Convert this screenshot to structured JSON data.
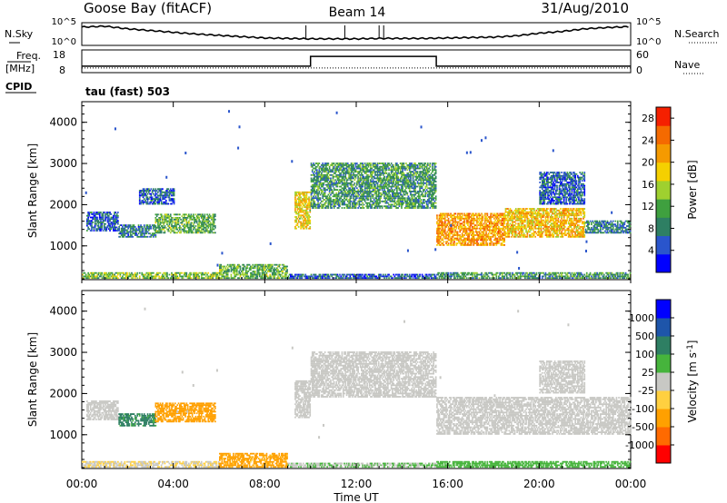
{
  "header": {
    "station": "Goose Bay (fitACF)",
    "beam": "Beam 14",
    "date": "31/Aug/2010",
    "cpid_label": "CPID",
    "cpid_value": "tau (fast) 503"
  },
  "colors": {
    "power": [
      "#0000ff",
      "#2a55cc",
      "#2e7f63",
      "#3fa03f",
      "#9fd02f",
      "#f5d000",
      "#f59a00",
      "#f56a00",
      "#f52000"
    ],
    "velocity": [
      "#ff0000",
      "#ff6a00",
      "#ffa000",
      "#ffd040",
      "#c8c8c4",
      "#46b43c",
      "#2e7f63",
      "#1e55aa",
      "#0000ff"
    ],
    "velocity_gray": "#c8c8c4"
  },
  "chart_data": [
    {
      "type": "line",
      "title": "N.Sky / N.Search",
      "left_label": "N.Sky",
      "right_label": "N.Search",
      "y_ticks_left": [
        "10^5",
        "10^0"
      ],
      "y_ticks_right": [
        "10^5",
        "10^0"
      ],
      "x": [
        0,
        1,
        2,
        3,
        4,
        5,
        6,
        7,
        8,
        9,
        10,
        11,
        12,
        13,
        14,
        15,
        16,
        17,
        18,
        19,
        20,
        21,
        22,
        23,
        24
      ],
      "series": [
        {
          "values_log10": [
            4.2,
            4.4,
            3.8,
            3.4,
            3.0,
            2.6,
            2.3,
            2.0,
            1.7,
            1.6,
            1.5,
            1.5,
            1.5,
            1.6,
            1.6,
            1.6,
            1.7,
            1.8,
            1.9,
            2.2,
            2.8,
            3.2,
            3.8,
            4.1,
            4.3
          ]
        }
      ]
    },
    {
      "type": "line",
      "title": "Freq / Nave",
      "left_label": "Freq. [MHz]",
      "right_label": "Nave",
      "y_ticks_left": [
        "18",
        "8"
      ],
      "y_ticks_right": [
        "60",
        "0"
      ],
      "series": [
        {
          "x": [
            0,
            10,
            10,
            15.5,
            15.5,
            24
          ],
          "values": [
            10,
            10,
            16,
            16,
            10,
            10
          ]
        }
      ]
    },
    {
      "type": "heatmap",
      "ylabel": "Slant Range [km]",
      "xlim": [
        0,
        24
      ],
      "ylim": [
        180,
        4500
      ],
      "y_ticks": [
        1000,
        2000,
        3000,
        4000
      ],
      "colorbar": {
        "label": "Power [dB]",
        "ticks": [
          "4",
          "8",
          "12",
          "16",
          "20",
          "24",
          "28"
        ],
        "range": [
          0,
          30
        ]
      },
      "regions": [
        {
          "t": [
            0.0,
            6.0
          ],
          "r": [
            200,
            330
          ],
          "value": 14
        },
        {
          "t": [
            6.0,
            9.0
          ],
          "r": [
            200,
            550
          ],
          "value": 12
        },
        {
          "t": [
            9.0,
            15.5
          ],
          "r": [
            200,
            300
          ],
          "value": 6
        },
        {
          "t": [
            15.5,
            24.0
          ],
          "r": [
            200,
            330
          ],
          "value": 10
        },
        {
          "t": [
            0.2,
            1.6
          ],
          "r": [
            1350,
            1800
          ],
          "value": 6
        },
        {
          "t": [
            1.6,
            3.2
          ],
          "r": [
            1200,
            1500
          ],
          "value": 8
        },
        {
          "t": [
            3.2,
            5.8
          ],
          "r": [
            1300,
            1750
          ],
          "value": 12
        },
        {
          "t": [
            2.5,
            4.0
          ],
          "r": [
            2000,
            2400
          ],
          "value": 6
        },
        {
          "t": [
            9.3,
            10.0
          ],
          "r": [
            1400,
            2300
          ],
          "value": 18
        },
        {
          "t": [
            10.0,
            15.5
          ],
          "r": [
            1900,
            3000
          ],
          "value": 10
        },
        {
          "t": [
            15.5,
            18.5
          ],
          "r": [
            1000,
            1800
          ],
          "value": 22
        },
        {
          "t": [
            18.5,
            22.0
          ],
          "r": [
            1200,
            1900
          ],
          "value": 20
        },
        {
          "t": [
            22.0,
            24.0
          ],
          "r": [
            1300,
            1600
          ],
          "value": 8
        },
        {
          "t": [
            20.0,
            22.0
          ],
          "r": [
            2000,
            2800
          ],
          "value": 6
        }
      ]
    },
    {
      "type": "heatmap",
      "ylabel": "Slant Range [km]",
      "xlabel": "Time UT",
      "xlim": [
        0,
        24
      ],
      "ylim": [
        180,
        4500
      ],
      "x_ticks": [
        "00:00",
        "04:00",
        "08:00",
        "12:00",
        "16:00",
        "20:00",
        "00:00"
      ],
      "y_ticks": [
        1000,
        2000,
        3000,
        4000
      ],
      "colorbar": {
        "label": "Velocity [m s^-1]",
        "ticks": [
          "1000",
          "500",
          "100",
          "25",
          "-25",
          "-100",
          "-500",
          "-1000"
        ]
      },
      "regions": [
        {
          "t": [
            0.0,
            6.0
          ],
          "r": [
            200,
            330
          ],
          "value": -25
        },
        {
          "t": [
            6.0,
            9.0
          ],
          "r": [
            200,
            550
          ],
          "value": -100
        },
        {
          "t": [
            9.0,
            15.5
          ],
          "r": [
            200,
            300
          ],
          "value": 25
        },
        {
          "t": [
            15.5,
            24.0
          ],
          "r": [
            200,
            330
          ],
          "value": 50
        },
        {
          "t": [
            0.2,
            1.6
          ],
          "r": [
            1350,
            1800
          ],
          "value": 0
        },
        {
          "t": [
            1.6,
            3.2
          ],
          "r": [
            1200,
            1500
          ],
          "value": 150
        },
        {
          "t": [
            3.2,
            5.8
          ],
          "r": [
            1300,
            1750
          ],
          "value": -200
        },
        {
          "t": [
            9.3,
            10.0
          ],
          "r": [
            1400,
            2300
          ],
          "value": 0
        },
        {
          "t": [
            10.0,
            15.5
          ],
          "r": [
            1900,
            3000
          ],
          "value": 0
        },
        {
          "t": [
            15.5,
            24.0
          ],
          "r": [
            1000,
            1900
          ],
          "value": 0
        },
        {
          "t": [
            20.0,
            22.0
          ],
          "r": [
            2000,
            2800
          ],
          "value": 0
        }
      ]
    }
  ]
}
